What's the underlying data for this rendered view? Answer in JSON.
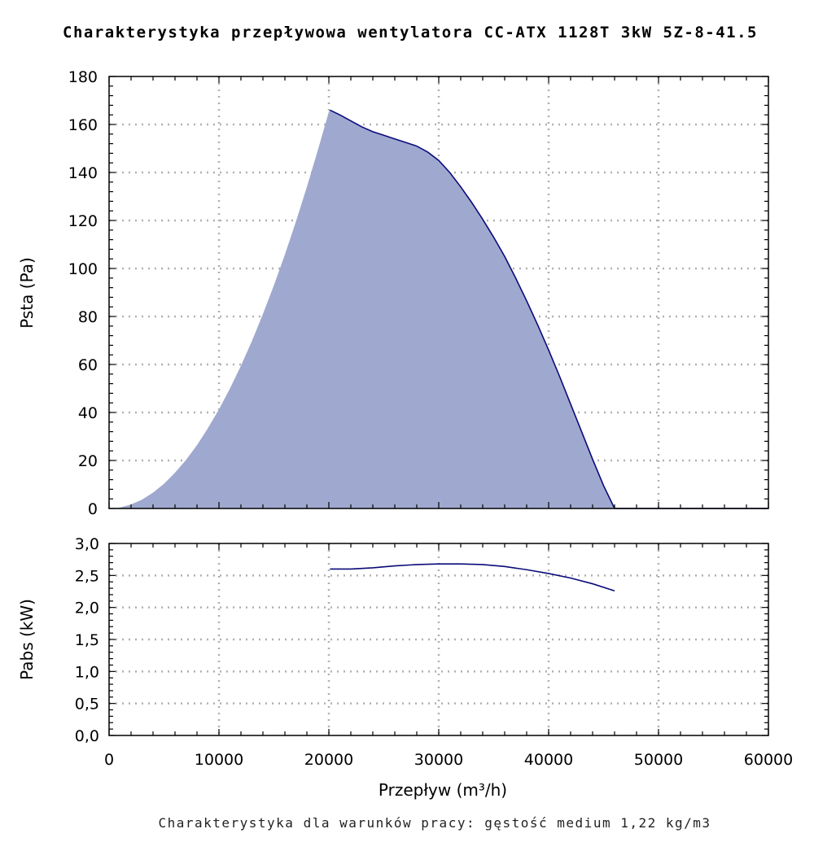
{
  "title": "Charakterystyka przepływowa wentylatora CC-ATX 1128T 3kW 5Z-8-41.5",
  "note": "Charakterystyka dla warunków pracy: gęstość medium 1,22 kg/m3",
  "colors": {
    "fill": "#9fa9cf",
    "line": "#0a0a7a",
    "grid": "#b0b0b0"
  },
  "chart_data": [
    {
      "type": "area",
      "ylabel": "Psta (Pa)",
      "xlim": [
        0,
        60000
      ],
      "ylim": [
        0,
        180
      ],
      "grid": true,
      "x_ticks": [
        0,
        10000,
        20000,
        30000,
        40000,
        50000,
        60000
      ],
      "y_ticks": [
        "0",
        "20",
        "40",
        "60",
        "80",
        "100",
        "120",
        "140",
        "160",
        "180"
      ],
      "y_tick_values": [
        0,
        20,
        40,
        60,
        80,
        100,
        120,
        140,
        160,
        180
      ],
      "series": [
        {
          "type": "area",
          "x": [
            0,
            1000,
            2000,
            3000,
            4000,
            5000,
            6000,
            7000,
            8000,
            9000,
            10000,
            11000,
            12000,
            13000,
            14000,
            15000,
            16000,
            17000,
            18000,
            19000,
            20000
          ],
          "y": [
            0,
            0.4,
            1.7,
            3.7,
            6.6,
            10.3,
            14.9,
            20.2,
            26.4,
            33.5,
            41.3,
            50,
            59.5,
            69.8,
            81,
            93,
            105.8,
            119.5,
            134,
            149.3,
            165.3
          ]
        },
        {
          "type": "line",
          "x": [
            20100,
            21000,
            22000,
            23000,
            24000,
            25000,
            26000,
            27000,
            28000,
            29000,
            30000,
            31000,
            32000,
            33000,
            34000,
            35000,
            36000,
            37000,
            38000,
            39000,
            40000,
            41000,
            42000,
            43000,
            44000,
            45000,
            46000
          ],
          "y": [
            166,
            164,
            161.5,
            159,
            157,
            155.5,
            154,
            152.5,
            151,
            148.5,
            145,
            140,
            134,
            127.5,
            120.5,
            113,
            105,
            96,
            86.5,
            76.5,
            66,
            55,
            43.5,
            32,
            20.5,
            9.5,
            0
          ]
        }
      ]
    },
    {
      "type": "line",
      "xlabel": "Przepływ (m³/h)",
      "ylabel": "Pabs (kW)",
      "xlim": [
        0,
        60000
      ],
      "ylim": [
        0,
        3
      ],
      "grid": true,
      "x_ticks": [
        "0",
        "10000",
        "20000",
        "30000",
        "40000",
        "50000",
        "60000"
      ],
      "x_tick_values": [
        0,
        10000,
        20000,
        30000,
        40000,
        50000,
        60000
      ],
      "y_ticks": [
        "0,0",
        "0,5",
        "1,0",
        "1,5",
        "2,0",
        "2,5",
        "3,0"
      ],
      "y_tick_values": [
        0,
        0.5,
        1,
        1.5,
        2,
        2.5,
        3
      ],
      "series": [
        {
          "type": "line",
          "x": [
            20100,
            22000,
            24000,
            26000,
            28000,
            30000,
            31000,
            32000,
            34000,
            36000,
            38000,
            40000,
            42000,
            44000,
            46000
          ],
          "y": [
            2.6,
            2.6,
            2.62,
            2.65,
            2.67,
            2.68,
            2.68,
            2.68,
            2.67,
            2.64,
            2.59,
            2.53,
            2.46,
            2.37,
            2.26
          ]
        }
      ]
    }
  ]
}
